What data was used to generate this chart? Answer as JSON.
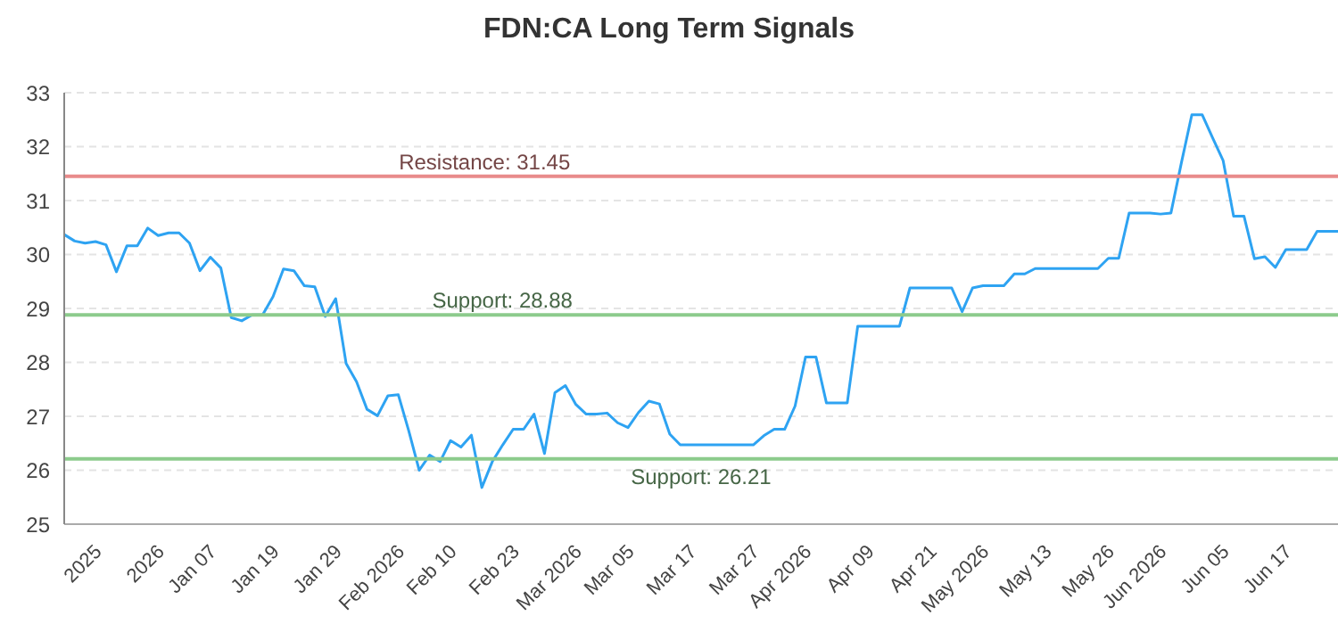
{
  "chart_data": {
    "type": "line",
    "title": "FDN:CA Long Term Signals",
    "categories": [
      null,
      null,
      null,
      "2025",
      null,
      null,
      null,
      null,
      null,
      "2026",
      null,
      null,
      null,
      null,
      "Jan 07",
      null,
      null,
      null,
      null,
      null,
      "Jan 19",
      null,
      null,
      null,
      null,
      null,
      "Jan 29",
      null,
      null,
      null,
      null,
      null,
      "Feb 2026",
      null,
      null,
      null,
      null,
      "Feb 10",
      null,
      null,
      null,
      null,
      null,
      "Feb 23",
      null,
      null,
      null,
      null,
      null,
      "Mar 2026",
      null,
      null,
      null,
      null,
      "Mar 05",
      null,
      null,
      null,
      null,
      null,
      "Mar 17",
      null,
      null,
      null,
      null,
      null,
      "Mar 27",
      null,
      null,
      null,
      null,
      "Apr 2026",
      null,
      null,
      null,
      null,
      null,
      "Apr 09",
      null,
      null,
      null,
      null,
      null,
      "Apr 21",
      null,
      null,
      null,
      null,
      "May 2026",
      null,
      null,
      null,
      null,
      null,
      "May 13",
      null,
      null,
      null,
      null,
      null,
      "May 26",
      null,
      null,
      null,
      null,
      "Jun 2026",
      null,
      null,
      null,
      null,
      null,
      "Jun 05",
      null,
      null,
      null,
      null,
      null,
      "Jun 17",
      null,
      null,
      null,
      null,
      null
    ],
    "series": [
      {
        "color": "#2ea3f2",
        "values": [
          30.37,
          30.25,
          30.21,
          30.24,
          30.18,
          29.68,
          30.16,
          30.16,
          30.49,
          30.35,
          30.4,
          30.4,
          30.21,
          29.7,
          29.95,
          29.75,
          28.83,
          28.77,
          28.88,
          28.88,
          29.22,
          29.73,
          29.7,
          29.42,
          29.4,
          28.85,
          29.18,
          27.98,
          27.64,
          27.13,
          27.01,
          27.38,
          27.4,
          26.73,
          26.0,
          26.28,
          26.16,
          26.55,
          26.43,
          26.65,
          25.68,
          26.16,
          26.47,
          26.76,
          26.76,
          27.04,
          26.31,
          27.44,
          27.57,
          27.22,
          27.04,
          27.04,
          27.06,
          26.88,
          26.79,
          27.07,
          27.28,
          27.23,
          26.67,
          26.47,
          26.47,
          26.47,
          26.47,
          26.47,
          26.47,
          26.47,
          26.47,
          26.64,
          26.76,
          26.76,
          27.19,
          28.1,
          28.1,
          27.25,
          27.25,
          27.25,
          28.67,
          28.67,
          28.67,
          28.67,
          28.67,
          29.38,
          29.38,
          29.38,
          29.38,
          29.38,
          28.94,
          29.38,
          29.42,
          29.42,
          29.42,
          29.64,
          29.64,
          29.74,
          29.74,
          29.74,
          29.74,
          29.74,
          29.74,
          29.74,
          29.93,
          29.93,
          30.77,
          30.77,
          30.77,
          30.75,
          30.77,
          31.7,
          32.59,
          32.59,
          32.16,
          31.74,
          30.71,
          30.71,
          29.92,
          29.96,
          29.76,
          30.09,
          30.09,
          30.09,
          30.43,
          30.43,
          30.43
        ]
      }
    ],
    "ylim": [
      25,
      33
    ],
    "yticks": [
      25,
      26,
      27,
      28,
      29,
      30,
      31,
      32,
      33
    ],
    "grid": "y",
    "marker": "none",
    "line_style": "solid",
    "ref_lines": [
      {
        "axis": "y",
        "value": 31.45,
        "label": "Resistance: 31.45",
        "color": "#e88b8b"
      },
      {
        "axis": "y",
        "value": 28.88,
        "label": "Support: 28.88",
        "color": "#8ccb8c"
      },
      {
        "axis": "y",
        "value": 26.21,
        "label": "Support: 26.21",
        "color": "#8ccb8c"
      }
    ]
  }
}
